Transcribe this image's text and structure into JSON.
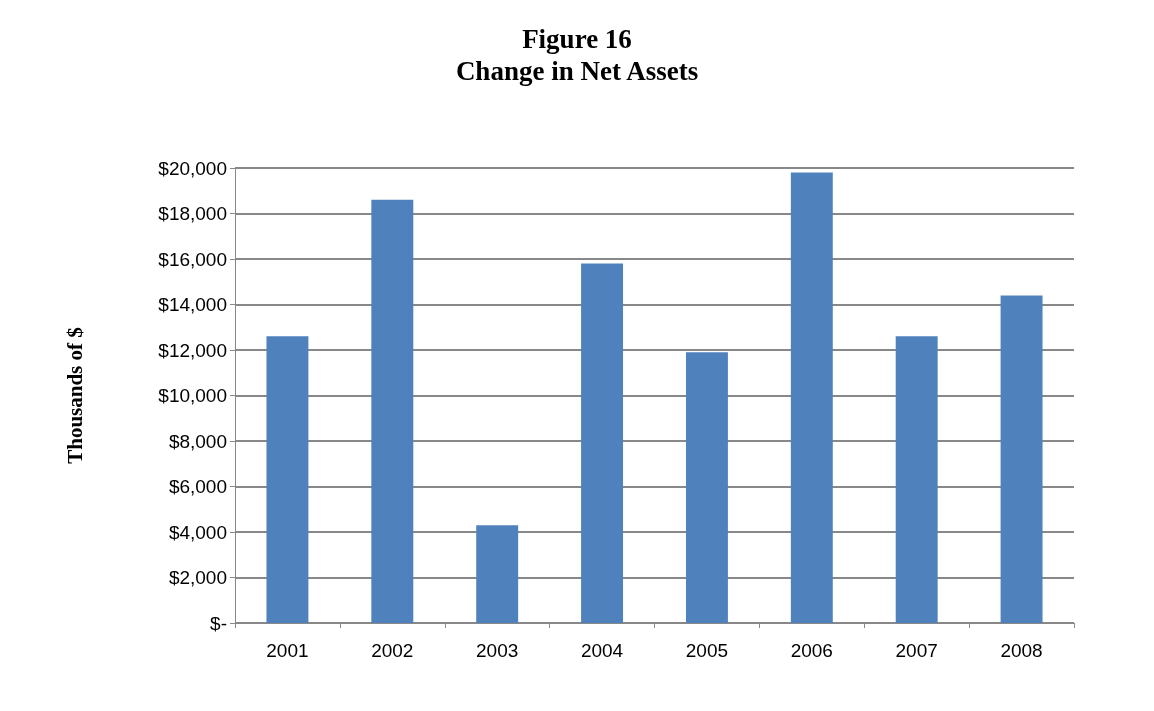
{
  "chart_data": {
    "type": "bar",
    "title": "Figure 16\nChange in Net Assets",
    "ylabel": "Thousands of $",
    "categories": [
      "2001",
      "2002",
      "2003",
      "2004",
      "2005",
      "2006",
      "2007",
      "2008"
    ],
    "values": [
      12600,
      18600,
      4300,
      15800,
      11900,
      19800,
      12600,
      14400
    ],
    "color": "#4f81bd",
    "ylim": [
      0,
      20000
    ],
    "yticks": [
      {
        "value": 0,
        "label": "$-"
      },
      {
        "value": 2000,
        "label": "$2,000"
      },
      {
        "value": 4000,
        "label": "$4,000"
      },
      {
        "value": 6000,
        "label": "$6,000"
      },
      {
        "value": 8000,
        "label": "$8,000"
      },
      {
        "value": 10000,
        "label": "$10,000"
      },
      {
        "value": 12000,
        "label": "$12,000"
      },
      {
        "value": 14000,
        "label": "$14,000"
      },
      {
        "value": 16000,
        "label": "$16,000"
      },
      {
        "value": 18000,
        "label": "$18,000"
      },
      {
        "value": 20000,
        "label": "$20,000"
      }
    ],
    "grid": "y"
  }
}
